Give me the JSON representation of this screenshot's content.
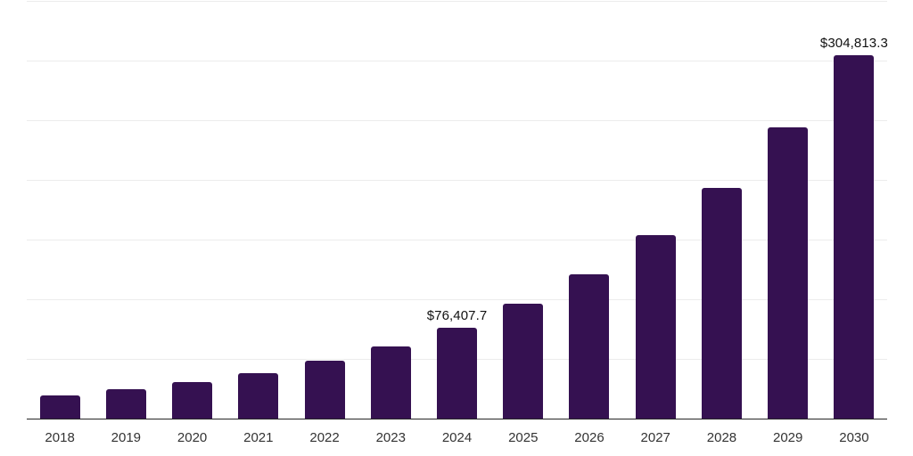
{
  "chart_data": {
    "type": "bar",
    "title": "",
    "xlabel": "",
    "ylabel": "",
    "categories": [
      "2018",
      "2019",
      "2020",
      "2021",
      "2022",
      "2023",
      "2024",
      "2025",
      "2026",
      "2027",
      "2028",
      "2029",
      "2030"
    ],
    "values": [
      19700,
      24900,
      30900,
      38400,
      48800,
      60800,
      76407.7,
      96600,
      121200,
      154100,
      193600,
      244400,
      304813.3
    ],
    "data_labels": {
      "2024": "$76,407.7",
      "2030": "$304,813.3"
    },
    "ylim": [
      0,
      350000
    ],
    "gridline_step": 50000,
    "grid": "horizontal",
    "legend": "none",
    "bar_color": "#351151",
    "axis_line_color": "#262626",
    "gridline_color": "#ececec",
    "label_color": "#111111",
    "tick_label_color": "#333333",
    "background_color": "#ffffff"
  }
}
